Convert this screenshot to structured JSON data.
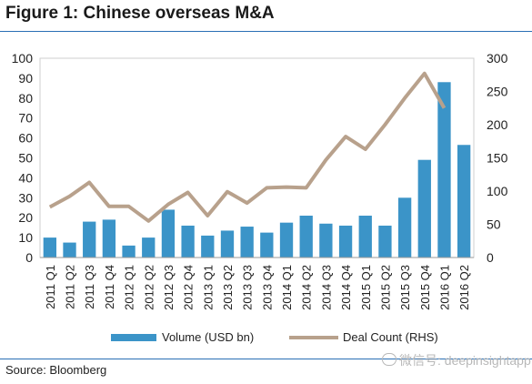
{
  "figure_title": "Figure 1: Chinese overseas M&A",
  "source": "Source: Bloomberg",
  "watermark": "微信号: deepinsightapp",
  "colors": {
    "bar": "#3b94c8",
    "line": "#b8a18c",
    "rule": "#2a6fb5",
    "text": "#222222",
    "grid": "#d9d9d9"
  },
  "chart_data": {
    "type": "bar",
    "title": "",
    "xlabel": "",
    "ylabel": "",
    "categories": [
      "2011 Q1",
      "2011 Q2",
      "2011 Q3",
      "2011 Q4",
      "2012 Q1",
      "2012 Q2",
      "2012 Q3",
      "2012 Q4",
      "2013 Q1",
      "2013 Q2",
      "2013 Q3",
      "2013 Q4",
      "2014 Q1",
      "2014 Q2",
      "2014 Q3",
      "2014 Q4",
      "2015 Q1",
      "2015 Q2",
      "2015 Q3",
      "2015 Q4",
      "2016 Q1",
      "2016 Q2"
    ],
    "series": [
      {
        "name": "Volume (USD bn)",
        "type": "bar",
        "axis": "left",
        "values": [
          10,
          7.5,
          18,
          19,
          6,
          10,
          24,
          16,
          11,
          13.5,
          15.5,
          12.5,
          17.5,
          21,
          17,
          16,
          21,
          16,
          30,
          49,
          88,
          56.5
        ]
      },
      {
        "name": "Deal Count (RHS)",
        "type": "line",
        "axis": "right",
        "values": [
          76,
          92,
          113,
          77,
          77,
          55,
          80,
          98,
          63,
          99,
          82,
          105,
          106,
          105,
          147,
          182,
          163,
          200,
          240,
          277,
          225,
          null
        ]
      }
    ],
    "ylim": [
      0,
      100
    ],
    "yticks": [
      0,
      10,
      20,
      30,
      40,
      50,
      60,
      70,
      80,
      90,
      100
    ],
    "y2lim": [
      0,
      300
    ],
    "y2ticks": [
      0,
      50,
      100,
      150,
      200,
      250,
      300
    ],
    "grid": false,
    "legend": "bottom"
  }
}
